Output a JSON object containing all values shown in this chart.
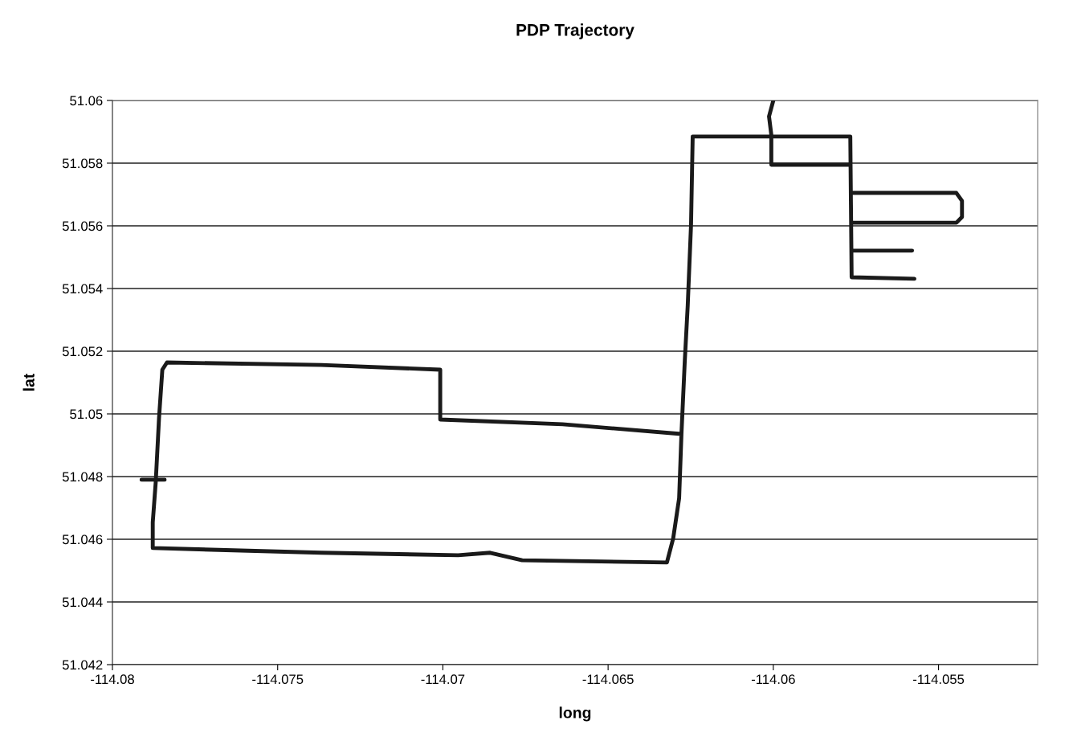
{
  "chart_data": {
    "type": "line",
    "title": "PDP Trajectory",
    "xlabel": "long",
    "ylabel": "lat",
    "xlim": [
      -114.08,
      -114.052
    ],
    "xticks": [
      -114.08,
      -114.075,
      -114.07,
      -114.065,
      -114.06,
      -114.055
    ],
    "ylim": [
      51.042,
      51.06
    ],
    "yticks": [
      51.042,
      51.044,
      51.046,
      51.048,
      51.05,
      51.052,
      51.054,
      51.056,
      51.058,
      51.06
    ],
    "grid": "y",
    "marker": "none",
    "line_style": "solid",
    "series": [
      {
        "color": "#1a1a1a",
        "x": [
          -114.06,
          -114.06013,
          -114.06006,
          -114.06006,
          -114.05767,
          null,
          -114.06244,
          -114.05767,
          -114.05763,
          -114.05573,
          null,
          -114.05763,
          -114.05446,
          -114.05429,
          -114.05429,
          -114.05446,
          -114.05758,
          null,
          -114.05763,
          -114.0558,
          null,
          -114.06244,
          -114.06249,
          -114.06259,
          -114.06268,
          -114.06278,
          -114.06285,
          -114.06303,
          -114.06322,
          -114.0676,
          -114.06857,
          -114.06954,
          -114.07368,
          -114.07878,
          -114.07878,
          -114.07869,
          -114.07859,
          -114.07849,
          -114.07835,
          -114.07368,
          -114.07008,
          -114.07008,
          -114.06638,
          -114.06278,
          null,
          -114.07912,
          -114.07842
        ],
        "values": [
          51.06,
          51.05949,
          51.0589,
          51.05795,
          51.05795,
          null,
          51.05885,
          51.05885,
          51.05436,
          51.05431,
          null,
          51.05705,
          51.05705,
          51.0568,
          51.05628,
          51.0561,
          51.0561,
          null,
          51.05521,
          51.05521,
          null,
          51.05885,
          51.05603,
          51.05346,
          51.05167,
          51.04936,
          51.04731,
          51.04603,
          51.04526,
          51.04533,
          51.04557,
          51.04549,
          51.04557,
          51.04572,
          51.04654,
          51.04782,
          51.04987,
          51.05141,
          51.05164,
          51.05156,
          51.05141,
          51.04982,
          51.04967,
          51.04936,
          null,
          51.0479,
          51.0479
        ]
      }
    ]
  }
}
